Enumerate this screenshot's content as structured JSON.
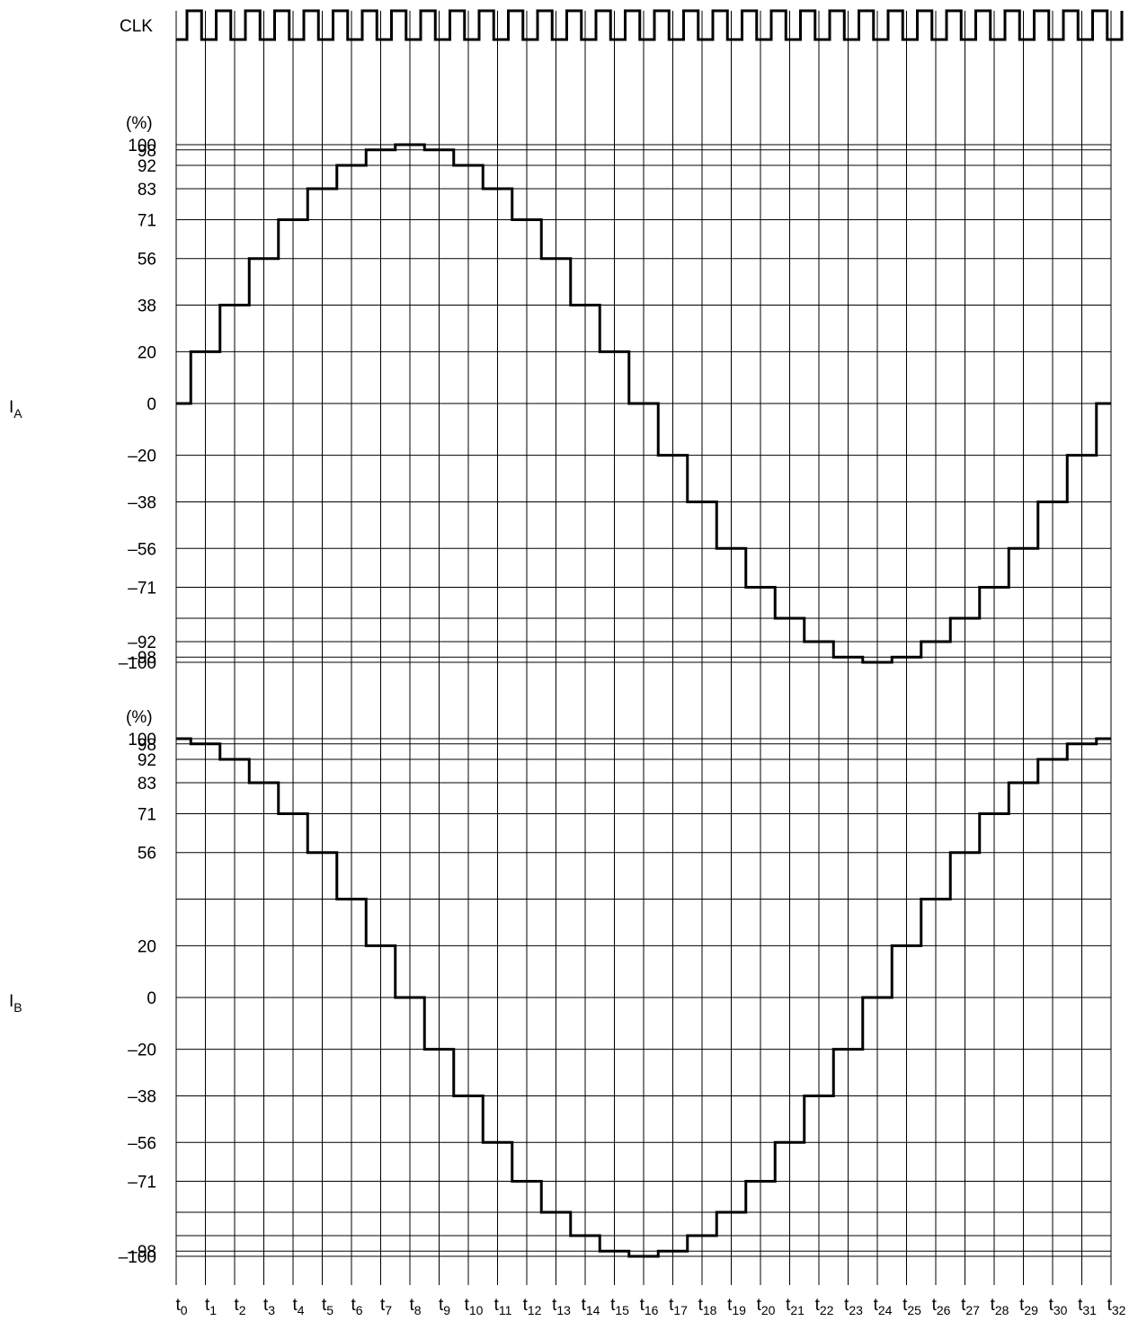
{
  "chart_data": [
    {
      "type": "line",
      "signal": "CLK",
      "clock_label": "CLK",
      "clock_cycles": 33
    },
    {
      "type": "line",
      "signal_label": {
        "main": "I",
        "sub": "A"
      },
      "unit_label": "(%)",
      "tick_labels": [
        "100",
        "98",
        "92",
        "83",
        "71",
        "56",
        "38",
        "20",
        "0",
        "–20",
        "–38",
        "–56",
        "–71",
        "–92",
        "–98",
        "–100"
      ],
      "gridlines": [
        100,
        98,
        92,
        83,
        71,
        56,
        38,
        20,
        0,
        -20,
        -38,
        -56,
        -71,
        -83,
        -92,
        -98,
        -100
      ],
      "ylim": [
        -100,
        100
      ],
      "x": [
        "t0",
        "t1",
        "t2",
        "t3",
        "t4",
        "t5",
        "t6",
        "t7",
        "t8",
        "t9",
        "t10",
        "t11",
        "t12",
        "t13",
        "t14",
        "t15",
        "t16",
        "t17",
        "t18",
        "t19",
        "t20",
        "t21",
        "t22",
        "t23",
        "t24",
        "t25",
        "t26",
        "t27",
        "t28",
        "t29",
        "t30",
        "t31",
        "t32"
      ],
      "values": [
        0,
        20,
        38,
        56,
        71,
        83,
        92,
        98,
        100,
        98,
        92,
        83,
        71,
        56,
        38,
        20,
        0,
        -20,
        -38,
        -56,
        -71,
        -83,
        -92,
        -98,
        -100,
        -98,
        -92,
        -83,
        -71,
        -56,
        -38,
        -20,
        0
      ]
    },
    {
      "type": "line",
      "signal_label": {
        "main": "I",
        "sub": "B"
      },
      "unit_label": "(%)",
      "tick_labels": [
        "100",
        "98",
        "92",
        "83",
        "71",
        "56",
        "20",
        "0",
        "–20",
        "–38",
        "–56",
        "–71",
        "–98",
        "–100"
      ],
      "gridlines": [
        100,
        98,
        92,
        83,
        71,
        56,
        38,
        20,
        0,
        -20,
        -38,
        -56,
        -71,
        -83,
        -92,
        -98,
        -100
      ],
      "ylim": [
        -100,
        100
      ],
      "x": [
        "t0",
        "t1",
        "t2",
        "t3",
        "t4",
        "t5",
        "t6",
        "t7",
        "t8",
        "t9",
        "t10",
        "t11",
        "t12",
        "t13",
        "t14",
        "t15",
        "t16",
        "t17",
        "t18",
        "t19",
        "t20",
        "t21",
        "t22",
        "t23",
        "t24",
        "t25",
        "t26",
        "t27",
        "t28",
        "t29",
        "t30",
        "t31",
        "t32"
      ],
      "values": [
        100,
        98,
        92,
        83,
        71,
        56,
        38,
        20,
        0,
        -20,
        -38,
        -56,
        -71,
        -83,
        -92,
        -98,
        -100,
        -98,
        -92,
        -83,
        -71,
        -56,
        -38,
        -20,
        0,
        20,
        38,
        56,
        71,
        83,
        92,
        98,
        100
      ]
    }
  ],
  "time_axis": {
    "labels": [
      {
        "main": "t",
        "sub": "0"
      },
      {
        "main": "t",
        "sub": "1"
      },
      {
        "main": "t",
        "sub": "2"
      },
      {
        "main": "t",
        "sub": "3"
      },
      {
        "main": "t",
        "sub": "4"
      },
      {
        "main": "t",
        "sub": "5"
      },
      {
        "main": "t",
        "sub": "6"
      },
      {
        "main": "t",
        "sub": "7"
      },
      {
        "main": "t",
        "sub": "8"
      },
      {
        "main": "t",
        "sub": "9"
      },
      {
        "main": "t",
        "sub": "10"
      },
      {
        "main": "t",
        "sub": "11"
      },
      {
        "main": "t",
        "sub": "12"
      },
      {
        "main": "t",
        "sub": "13"
      },
      {
        "main": "t",
        "sub": "14"
      },
      {
        "main": "t",
        "sub": "15"
      },
      {
        "main": "t",
        "sub": "16"
      },
      {
        "main": "t",
        "sub": "17"
      },
      {
        "main": "t",
        "sub": "18"
      },
      {
        "main": "t",
        "sub": "19"
      },
      {
        "main": "t",
        "sub": "20"
      },
      {
        "main": "t",
        "sub": "21"
      },
      {
        "main": "t",
        "sub": "22"
      },
      {
        "main": "t",
        "sub": "23"
      },
      {
        "main": "t",
        "sub": "24"
      },
      {
        "main": "t",
        "sub": "25"
      },
      {
        "main": "t",
        "sub": "26"
      },
      {
        "main": "t",
        "sub": "27"
      },
      {
        "main": "t",
        "sub": "28"
      },
      {
        "main": "t",
        "sub": "29"
      },
      {
        "main": "t",
        "sub": "30"
      },
      {
        "main": "t",
        "sub": "31"
      },
      {
        "main": "t",
        "sub": "32"
      }
    ]
  }
}
